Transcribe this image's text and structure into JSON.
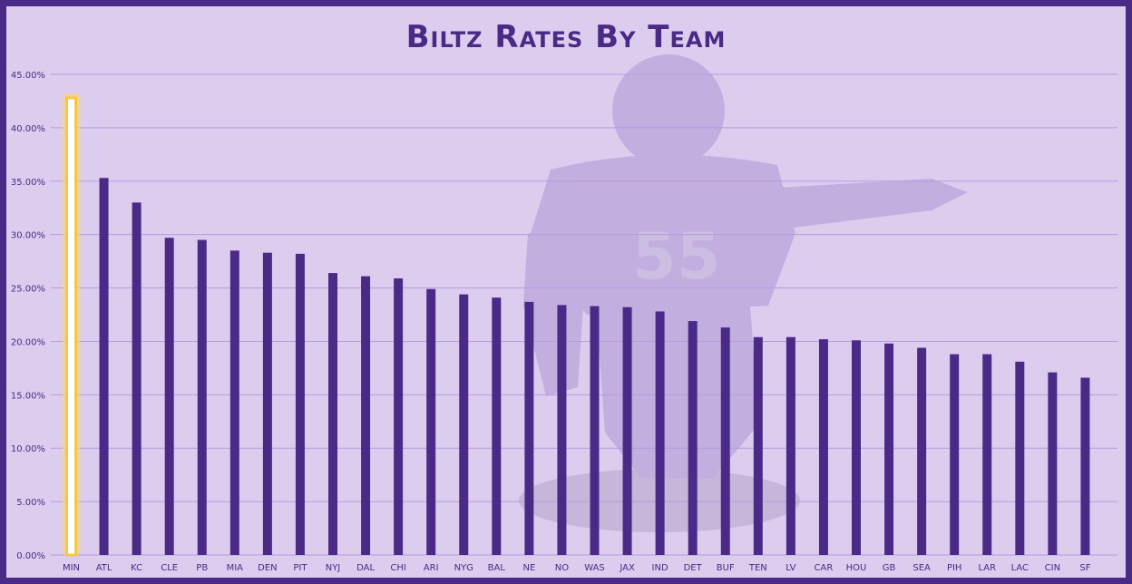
{
  "chart_data": {
    "type": "bar",
    "title": "Biltz Rates By Team",
    "xlabel": "",
    "ylabel": "",
    "ylim": [
      0,
      45
    ],
    "yticks": [
      "0.00%",
      "5.00%",
      "10.00%",
      "15.00%",
      "20.00%",
      "25.00%",
      "30.00%",
      "35.00%",
      "40.00%",
      "45.00%"
    ],
    "categories": [
      "MIN",
      "ATL",
      "KC",
      "CLE",
      "PB",
      "MIA",
      "DEN",
      "PIT",
      "NYJ",
      "DAL",
      "CHI",
      "ARI",
      "NYG",
      "BAL",
      "NE",
      "NO",
      "WAS",
      "JAX",
      "IND",
      "DET",
      "BUF",
      "TEN",
      "LV",
      "CAR",
      "HOU",
      "GB",
      "SEA",
      "PIH",
      "LAR",
      "LAC",
      "CIN",
      "SF"
    ],
    "values": [
      42.8,
      35.3,
      33.0,
      29.7,
      29.5,
      28.5,
      28.3,
      28.2,
      26.4,
      26.1,
      25.9,
      24.9,
      24.4,
      24.1,
      23.7,
      23.4,
      23.3,
      23.2,
      22.8,
      21.9,
      21.3,
      20.4,
      20.4,
      20.2,
      20.1,
      19.8,
      19.4,
      18.8,
      18.8,
      18.1,
      17.1,
      16.6
    ],
    "highlight_category": "MIN",
    "colors": {
      "bar": "#4b2a87",
      "highlight_fill": "#ffffff",
      "highlight_glow": "#f5c84a",
      "background": "#dccdef",
      "grid": "#b59ce0"
    },
    "grid": true,
    "legend": "none"
  },
  "background_image": "vikings-player-55-pointing"
}
